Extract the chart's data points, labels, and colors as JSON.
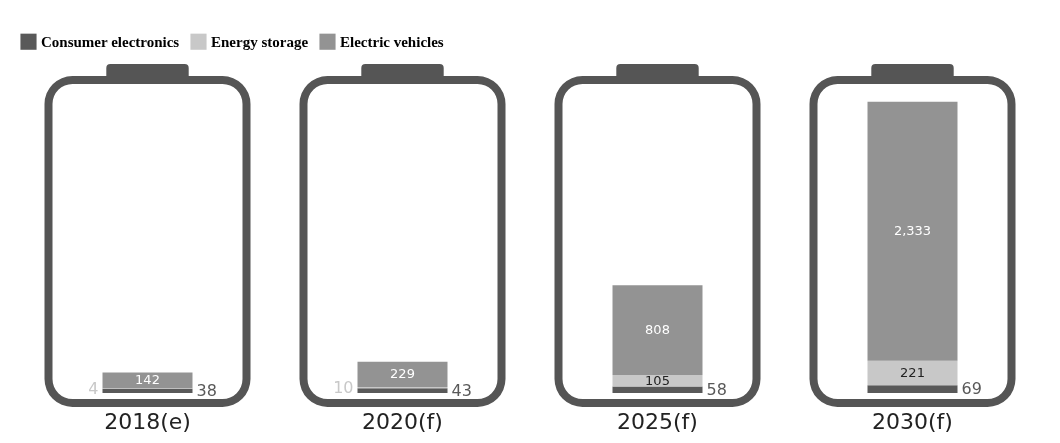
{
  "chart_data": {
    "type": "bar",
    "stacked": true,
    "legend": "top",
    "categories": [
      "2018(e)",
      "2020(f)",
      "2025(f)",
      "2030(f)"
    ],
    "series": [
      {
        "name": "Consumer electronics",
        "color": "#595959",
        "values": [
          38,
          43,
          58,
          69
        ],
        "value_labels": [
          "38",
          "43",
          "58",
          "69"
        ]
      },
      {
        "name": "Energy storage",
        "color": "#c8c8c8",
        "values": [
          4,
          10,
          105,
          221
        ],
        "value_labels": [
          "4",
          "10",
          "105",
          "221"
        ]
      },
      {
        "name": "Electric vehicles",
        "color": "#939393",
        "values": [
          142,
          229,
          808,
          2333
        ],
        "value_labels": [
          "142",
          "229",
          "808",
          "2,333"
        ]
      }
    ]
  }
}
